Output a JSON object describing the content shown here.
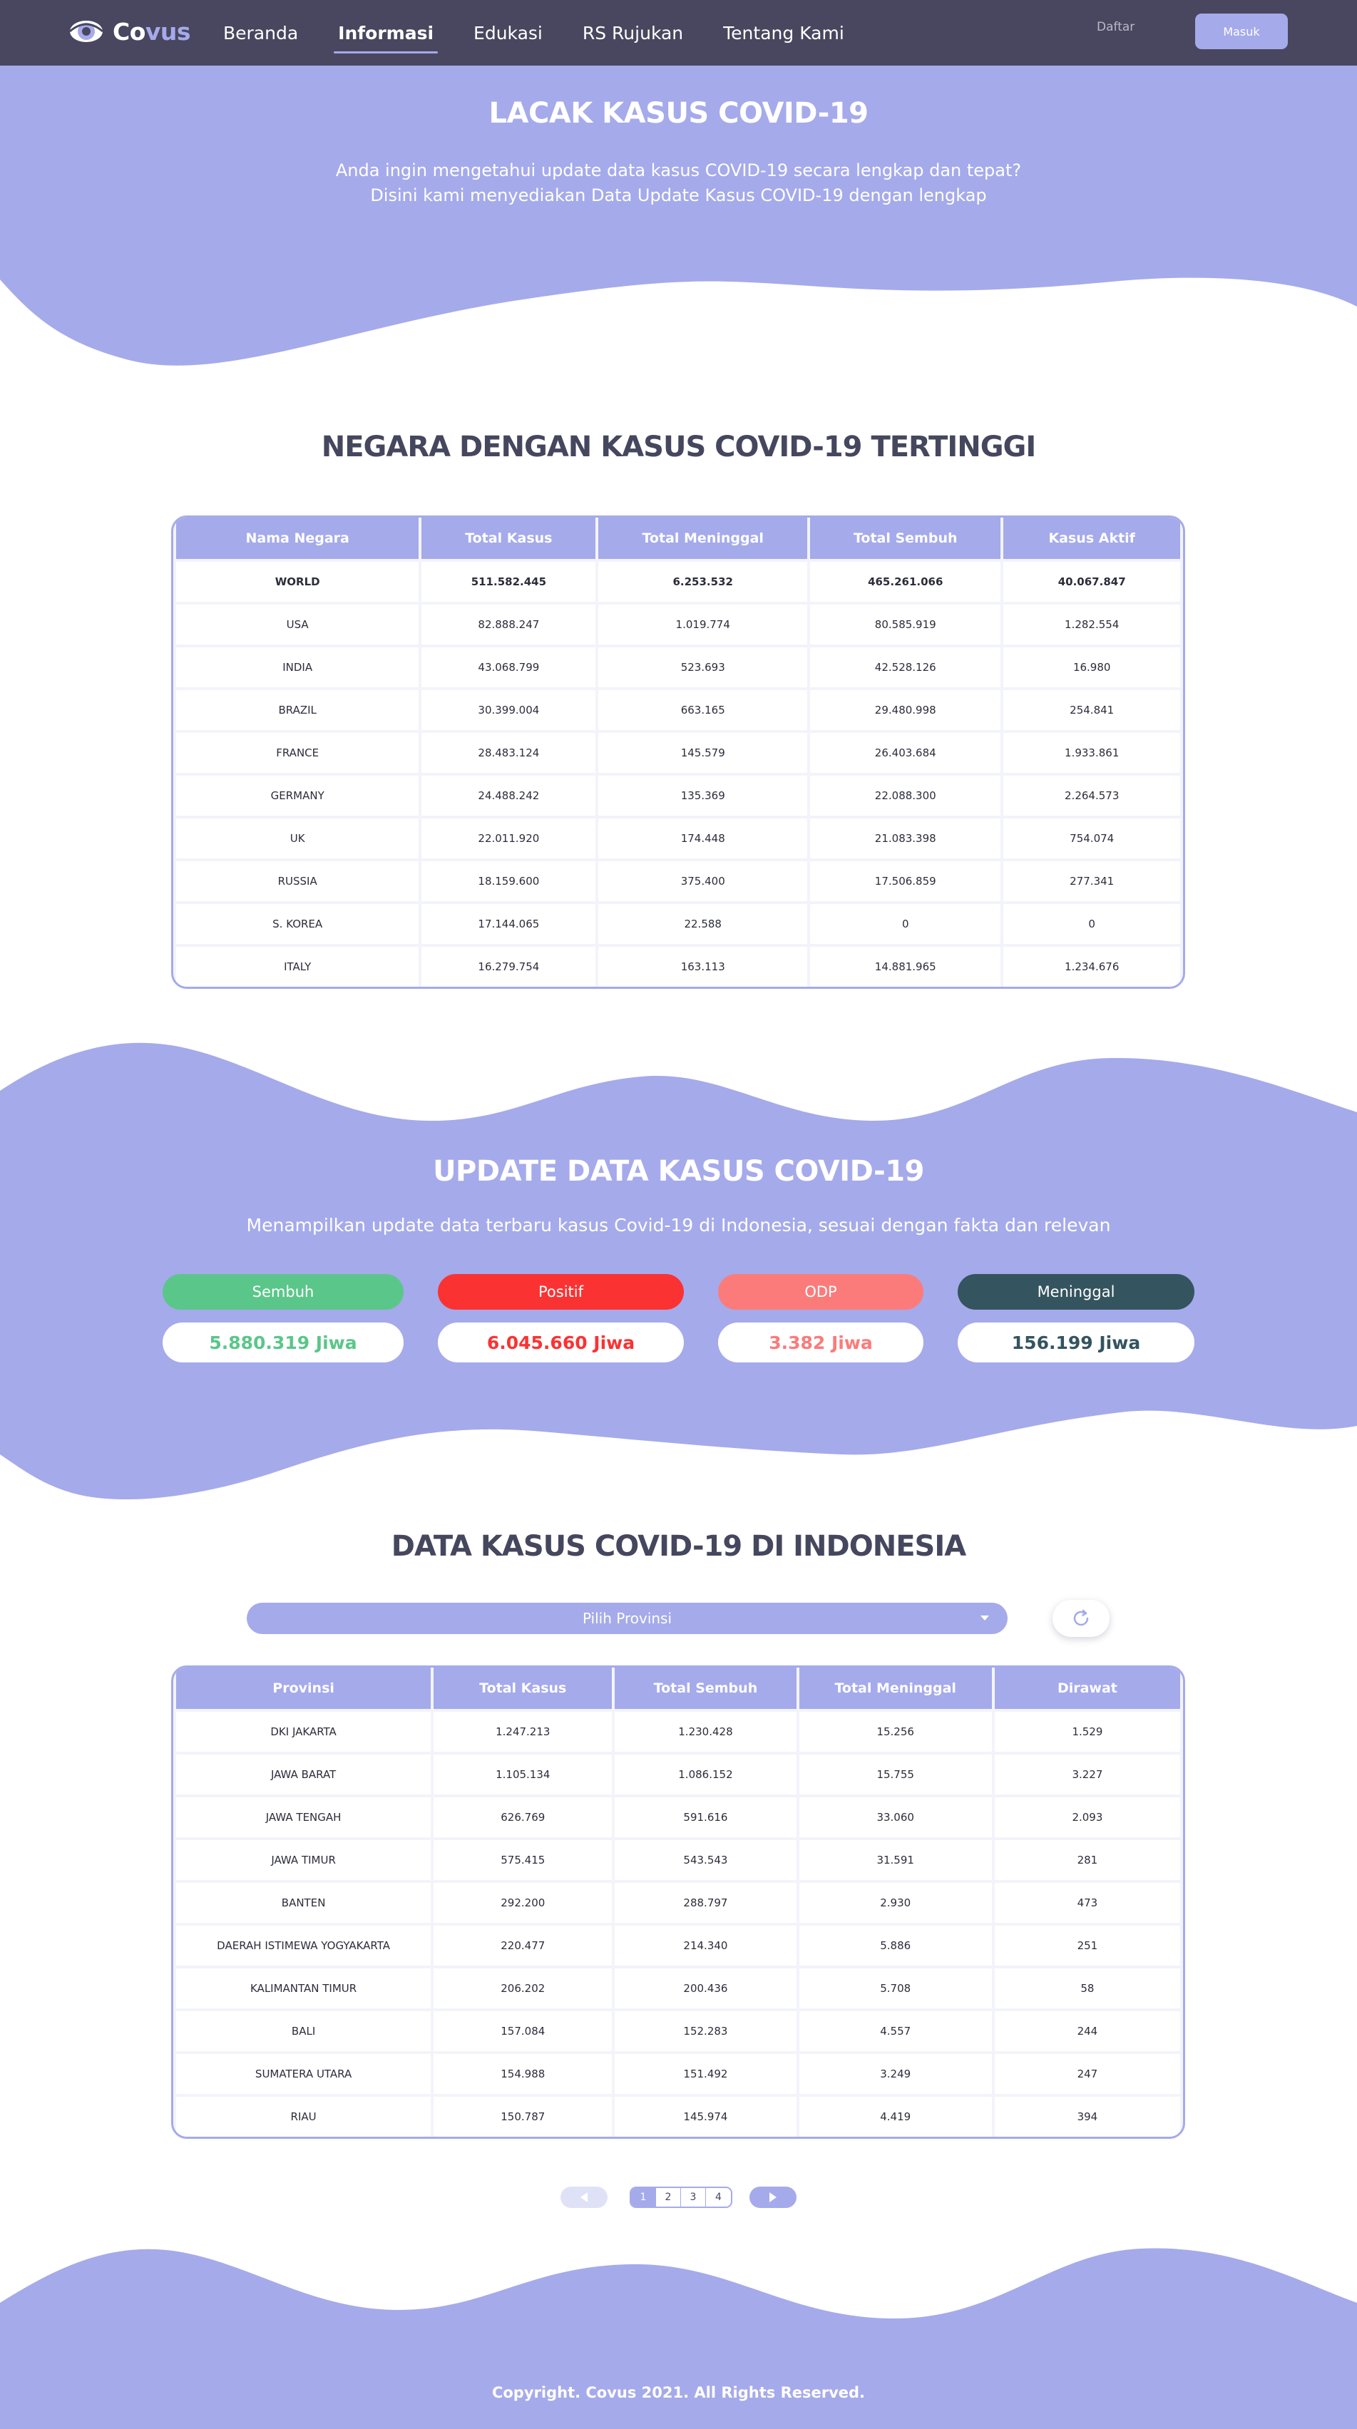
{
  "nav": {
    "brand_a": "Co",
    "brand_b": "vus",
    "links": [
      "Beranda",
      "Informasi",
      "Edukasi",
      "RS Rujukan",
      "Tentang Kami"
    ],
    "register_label": "Daftar",
    "login_label": "Masuk"
  },
  "hero": {
    "title": "LACAK KASUS COVID-19",
    "line1": "Anda ingin mengetahui update data kasus COVID-19 secara lengkap dan tepat?",
    "line2": "Disini kami menyediakan Data Update Kasus COVID-19 dengan lengkap"
  },
  "world": {
    "title": "NEGARA DENGAN KASUS COVID-19 TERTINGGI",
    "columns": [
      "Nama Negara",
      "Total Kasus",
      "Total Meninggal",
      "Total Sembuh",
      "Kasus Aktif"
    ],
    "rows": [
      [
        "WORLD",
        "511.582.445",
        "6.253.532",
        "465.261.066",
        "40.067.847"
      ],
      [
        "USA",
        "82.888.247",
        "1.019.774",
        "80.585.919",
        "1.282.554"
      ],
      [
        "INDIA",
        "43.068.799",
        "523.693",
        "42.528.126",
        "16.980"
      ],
      [
        "BRAZIL",
        "30.399.004",
        "663.165",
        "29.480.998",
        "254.841"
      ],
      [
        "FRANCE",
        "28.483.124",
        "145.579",
        "26.403.684",
        "1.933.861"
      ],
      [
        "GERMANY",
        "24.488.242",
        "135.369",
        "22.088.300",
        "2.264.573"
      ],
      [
        "UK",
        "22.011.920",
        "174.448",
        "21.083.398",
        "754.074"
      ],
      [
        "RUSSIA",
        "18.159.600",
        "375.400",
        "17.506.859",
        "277.341"
      ],
      [
        "S. KOREA",
        "17.144.065",
        "22.588",
        "0",
        "0"
      ],
      [
        "ITALY",
        "16.279.754",
        "163.113",
        "14.881.965",
        "1.234.676"
      ]
    ]
  },
  "update": {
    "title": "UPDATE DATA KASUS COVID-19",
    "subtitle": "Menampilkan update data terbaru kasus Covid-19 di Indonesia, sesuai dengan fakta dan relevan",
    "stats": [
      {
        "label": "Sembuh",
        "value": "5.880.319 Jiwa",
        "color": "#5bc68a"
      },
      {
        "label": "Positif",
        "value": "6.045.660 Jiwa",
        "color": "#fb3232"
      },
      {
        "label": "ODP",
        "value": "3.382 Jiwa",
        "color": "#fb7b7b"
      },
      {
        "label": "Meninggal",
        "value": "156.199 Jiwa",
        "color": "#34545f"
      }
    ]
  },
  "indonesia": {
    "title": "DATA KASUS COVID-19 DI INDONESIA",
    "select_label": "Pilih Provinsi",
    "columns": [
      "Provinsi",
      "Total Kasus",
      "Total Sembuh",
      "Total Meninggal",
      "Dirawat"
    ],
    "rows": [
      [
        "DKI JAKARTA",
        "1.247.213",
        "1.230.428",
        "15.256",
        "1.529"
      ],
      [
        "JAWA BARAT",
        "1.105.134",
        "1.086.152",
        "15.755",
        "3.227"
      ],
      [
        "JAWA TENGAH",
        "626.769",
        "591.616",
        "33.060",
        "2.093"
      ],
      [
        "JAWA TIMUR",
        "575.415",
        "543.543",
        "31.591",
        "281"
      ],
      [
        "BANTEN",
        "292.200",
        "288.797",
        "2.930",
        "473"
      ],
      [
        "DAERAH ISTIMEWA YOGYAKARTA",
        "220.477",
        "214.340",
        "5.886",
        "251"
      ],
      [
        "KALIMANTAN TIMUR",
        "206.202",
        "200.436",
        "5.708",
        "58"
      ],
      [
        "BALI",
        "157.084",
        "152.283",
        "4.557",
        "244"
      ],
      [
        "SUMATERA UTARA",
        "154.988",
        "151.492",
        "3.249",
        "247"
      ],
      [
        "RIAU",
        "150.787",
        "145.974",
        "4.419",
        "394"
      ]
    ],
    "pages": [
      "1",
      "2",
      "3",
      "4"
    ]
  },
  "footer": {
    "text": "Copyright. Covus 2021. All Rights Reserved."
  },
  "colors": {
    "navbar": "#48475f",
    "accent": "#a5aaeb",
    "heading": "#45475e"
  }
}
